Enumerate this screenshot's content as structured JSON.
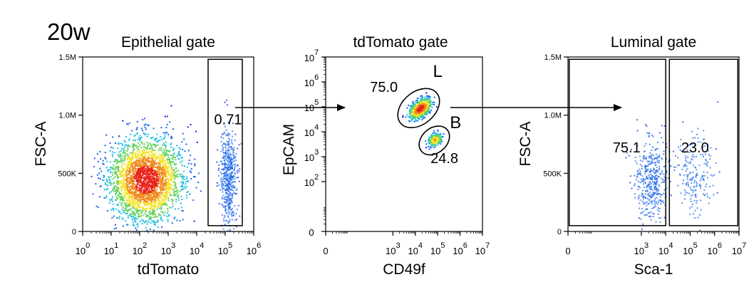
{
  "figure_label": "20w",
  "chart_data": [
    {
      "type": "scatter",
      "title": "Epithelial gate",
      "xlabel": "tdTomato",
      "ylabel": "FSC-A",
      "x_scale": "log",
      "xlim": [
        0,
        6
      ],
      "ylim": [
        0,
        1.5
      ],
      "x_ticks": [
        {
          "pos": 0,
          "base": "10",
          "exp": "0"
        },
        {
          "pos": 1,
          "base": "10",
          "exp": "1"
        },
        {
          "pos": 2,
          "base": "10",
          "exp": "2"
        },
        {
          "pos": 3,
          "base": "10",
          "exp": "3"
        },
        {
          "pos": 4,
          "base": "10",
          "exp": "4"
        },
        {
          "pos": 5,
          "base": "10",
          "exp": "5"
        },
        {
          "pos": 6,
          "base": "10",
          "exp": "6"
        }
      ],
      "y_ticks": [
        {
          "pos": 0,
          "label": "0"
        },
        {
          "pos": 0.5,
          "label": "500K"
        },
        {
          "pos": 1.0,
          "label": "1.0M"
        },
        {
          "pos": 1.5,
          "label": "1.5M"
        }
      ],
      "gates": [
        {
          "label": "",
          "value": "0.71",
          "shape": "rect",
          "x": [
            4.4,
            5.6
          ],
          "y": [
            0.05,
            1.48
          ],
          "value_at": [
            5.1,
            0.92
          ]
        }
      ],
      "populations": [
        {
          "center": [
            2.2,
            0.45
          ],
          "spread": [
            1.1,
            0.3
          ],
          "count": 2600,
          "density": "high"
        },
        {
          "center": [
            5.1,
            0.45
          ],
          "spread": [
            0.25,
            0.35
          ],
          "count": 500,
          "density": "low"
        }
      ]
    },
    {
      "type": "scatter",
      "title": "tdTomato gate",
      "xlabel": "CD49f",
      "ylabel": "EpCAM",
      "x_scale": "log",
      "y_scale": "log",
      "xlim": [
        0,
        7
      ],
      "ylim": [
        0,
        7
      ],
      "x_ticks": [
        {
          "pos": 0,
          "base": "0",
          "exp": ""
        },
        {
          "pos": 3,
          "base": "10",
          "exp": "3"
        },
        {
          "pos": 4,
          "base": "10",
          "exp": "4"
        },
        {
          "pos": 5,
          "base": "10",
          "exp": "5"
        },
        {
          "pos": 6,
          "base": "10",
          "exp": "6"
        },
        {
          "pos": 7,
          "base": "10",
          "exp": "7"
        }
      ],
      "y_ticks": [
        {
          "pos": 0,
          "base": "0",
          "exp": ""
        },
        {
          "pos": 2,
          "base": "10",
          "exp": "2"
        },
        {
          "pos": 3,
          "base": "10",
          "exp": "3"
        },
        {
          "pos": 4,
          "base": "10",
          "exp": "4"
        },
        {
          "pos": 5,
          "base": "10",
          "exp": "5"
        },
        {
          "pos": 6,
          "base": "10",
          "exp": "6"
        },
        {
          "pos": 7,
          "base": "10",
          "exp": "7"
        }
      ],
      "gates": [
        {
          "label": "L",
          "value": "75.0",
          "shape": "ellipse",
          "center": [
            4.15,
            4.95
          ],
          "radii": [
            1.05,
            0.65
          ],
          "rotation": -40,
          "label_at": [
            5.0,
            6.2
          ],
          "value_at": [
            2.6,
            5.6
          ]
        },
        {
          "label": "B",
          "value": "24.8",
          "shape": "ellipse",
          "center": [
            4.85,
            3.65
          ],
          "radii": [
            0.75,
            0.5
          ],
          "rotation": -40,
          "label_at": [
            5.8,
            4.15
          ],
          "value_at": [
            5.3,
            2.75
          ]
        }
      ],
      "populations": [
        {
          "center": [
            4.2,
            4.95
          ],
          "spread": [
            0.5,
            0.25
          ],
          "count": 700,
          "density": "high",
          "rotation": -40
        },
        {
          "center": [
            4.85,
            3.7
          ],
          "spread": [
            0.3,
            0.2
          ],
          "count": 250,
          "density": "medium",
          "rotation": -40
        }
      ]
    },
    {
      "type": "scatter",
      "title": "Luminal gate",
      "xlabel": "Sca-1",
      "ylabel": "FSC-A",
      "x_scale": "log",
      "xlim": [
        0,
        7
      ],
      "ylim": [
        0,
        1.5
      ],
      "x_ticks": [
        {
          "pos": 0,
          "base": "0",
          "exp": ""
        },
        {
          "pos": 3,
          "base": "10",
          "exp": "3"
        },
        {
          "pos": 4,
          "base": "10",
          "exp": "4"
        },
        {
          "pos": 5,
          "base": "10",
          "exp": "5"
        },
        {
          "pos": 6,
          "base": "10",
          "exp": "6"
        },
        {
          "pos": 7,
          "base": "10",
          "exp": "7"
        }
      ],
      "y_ticks": [
        {
          "pos": 0,
          "label": "0"
        },
        {
          "pos": 0.5,
          "label": "500K"
        },
        {
          "pos": 1.0,
          "label": "1.0M"
        },
        {
          "pos": 1.5,
          "label": "1.5M"
        }
      ],
      "gates": [
        {
          "label": "",
          "value": "75.1",
          "shape": "rect",
          "x": [
            0.05,
            4.0
          ],
          "y": [
            0.05,
            1.48
          ],
          "value_at": [
            2.4,
            0.68
          ]
        },
        {
          "label": "",
          "value": "23.0",
          "shape": "rect",
          "x": [
            4.15,
            6.95
          ],
          "y": [
            0.05,
            1.48
          ],
          "value_at": [
            5.2,
            0.68
          ]
        }
      ],
      "populations": [
        {
          "center": [
            3.4,
            0.45
          ],
          "spread": [
            0.55,
            0.3
          ],
          "count": 420,
          "density": "low"
        },
        {
          "center": [
            5.1,
            0.5
          ],
          "spread": [
            0.7,
            0.3
          ],
          "count": 200,
          "density": "low"
        }
      ]
    }
  ]
}
